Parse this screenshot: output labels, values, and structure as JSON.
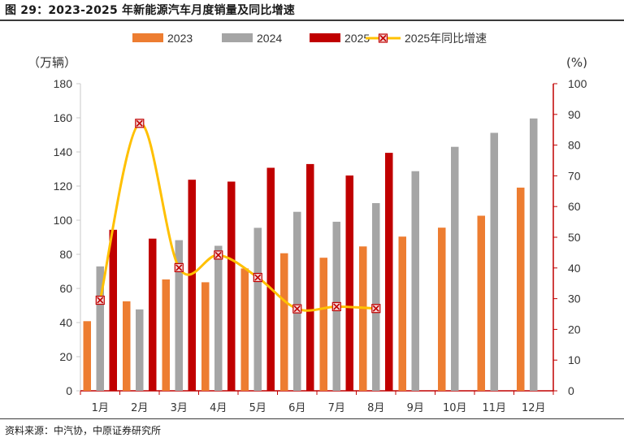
{
  "header": {
    "title": "图 29：2023-2025 年新能源汽车月度销量及同比增速"
  },
  "footer": {
    "source": "资料来源：中汽协，中原证券研究所"
  },
  "chart_data": {
    "type": "bar",
    "categories": [
      "1月",
      "2月",
      "3月",
      "4月",
      "5月",
      "6月",
      "7月",
      "8月",
      "9月",
      "10月",
      "11月",
      "12月"
    ],
    "series": [
      {
        "name": "2023",
        "kind": "bar",
        "color": "#ED7D31",
        "values": [
          40.8,
          52.5,
          65.3,
          63.6,
          71.7,
          80.6,
          78.0,
          84.6,
          90.4,
          95.6,
          102.6,
          119.1
        ]
      },
      {
        "name": "2024",
        "kind": "bar",
        "color": "#A5A5A5",
        "values": [
          72.9,
          47.7,
          88.3,
          85.0,
          95.5,
          104.9,
          99.1,
          110.0,
          128.7,
          143.0,
          151.2,
          159.6
        ]
      },
      {
        "name": "2025",
        "kind": "bar",
        "color": "#C00000",
        "values": [
          94.4,
          89.2,
          123.7,
          122.6,
          130.7,
          132.9,
          126.2,
          139.5,
          null,
          null,
          null,
          null
        ]
      },
      {
        "name": "2025年同比增速",
        "kind": "line",
        "axis": "right",
        "color": "#FFC000",
        "marker_color": "#C00000",
        "values": [
          29.5,
          87.1,
          40.1,
          44.2,
          36.9,
          26.7,
          27.4,
          26.8,
          null,
          null,
          null,
          null
        ]
      }
    ],
    "y_left": {
      "unit": "（万辆）",
      "lim": [
        0,
        180
      ],
      "ticks": [
        0,
        20,
        40,
        60,
        80,
        100,
        120,
        140,
        160,
        180
      ]
    },
    "y_right": {
      "unit": "(%)",
      "lim": [
        0,
        100
      ],
      "ticks": [
        0,
        10,
        20,
        30,
        40,
        50,
        60,
        70,
        80,
        90,
        100
      ]
    },
    "legend": "top",
    "grid": false
  }
}
